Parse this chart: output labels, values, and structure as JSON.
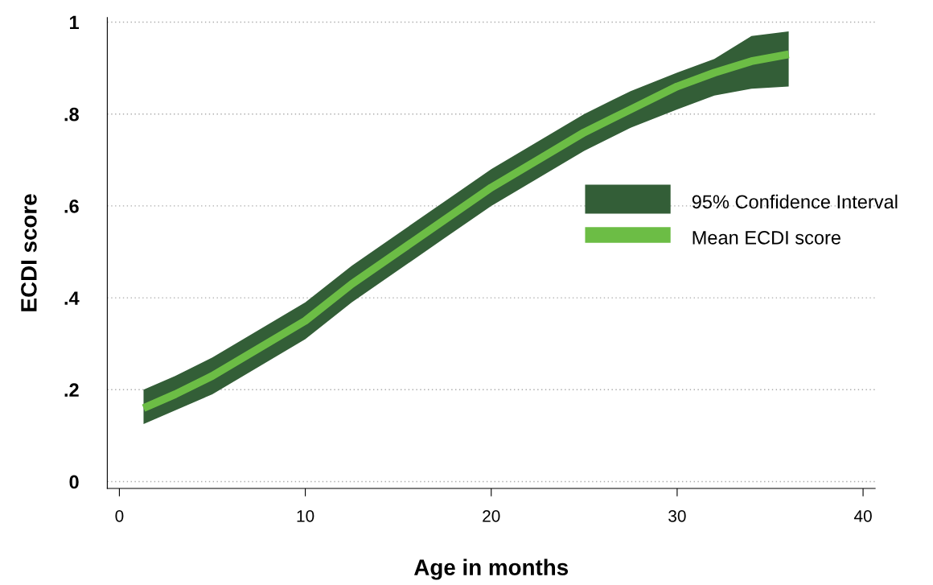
{
  "chart_data": {
    "type": "line",
    "xlabel": "Age in months",
    "ylabel": "ECDI score",
    "x": [
      1.3,
      3,
      5,
      7.5,
      10,
      12.5,
      15,
      17.5,
      20,
      22.5,
      25,
      27.5,
      30,
      32,
      34,
      36
    ],
    "series": [
      {
        "name": "Mean ECDI score",
        "color": "#6cbd45",
        "values": [
          0.16,
          0.19,
          0.23,
          0.29,
          0.35,
          0.43,
          0.5,
          0.57,
          0.64,
          0.7,
          0.76,
          0.81,
          0.86,
          0.89,
          0.915,
          0.93
        ],
        "upper": [
          0.2,
          0.23,
          0.27,
          0.33,
          0.39,
          0.47,
          0.54,
          0.61,
          0.68,
          0.74,
          0.8,
          0.85,
          0.89,
          0.92,
          0.97,
          0.98
        ],
        "lower": [
          0.125,
          0.155,
          0.19,
          0.25,
          0.31,
          0.39,
          0.46,
          0.53,
          0.6,
          0.66,
          0.72,
          0.77,
          0.81,
          0.84,
          0.855,
          0.86
        ]
      }
    ],
    "xlim": [
      -0.65,
      40.65
    ],
    "xticks": [
      0,
      10,
      20,
      30,
      40
    ],
    "ylim": [
      -0.015,
      1.01
    ],
    "yticks": [
      {
        "value": 0,
        "label": "0"
      },
      {
        "value": 0.2,
        "label": ".2"
      },
      {
        "value": 0.4,
        "label": ".4"
      },
      {
        "value": 0.6,
        "label": ".6"
      },
      {
        "value": 0.8,
        "label": ".8"
      },
      {
        "value": 1,
        "label": "1"
      }
    ],
    "annotations": [
      "95% Confidence Interval"
    ],
    "grid": "y",
    "legend": "right",
    "marker": "none",
    "line_style": "solid"
  }
}
